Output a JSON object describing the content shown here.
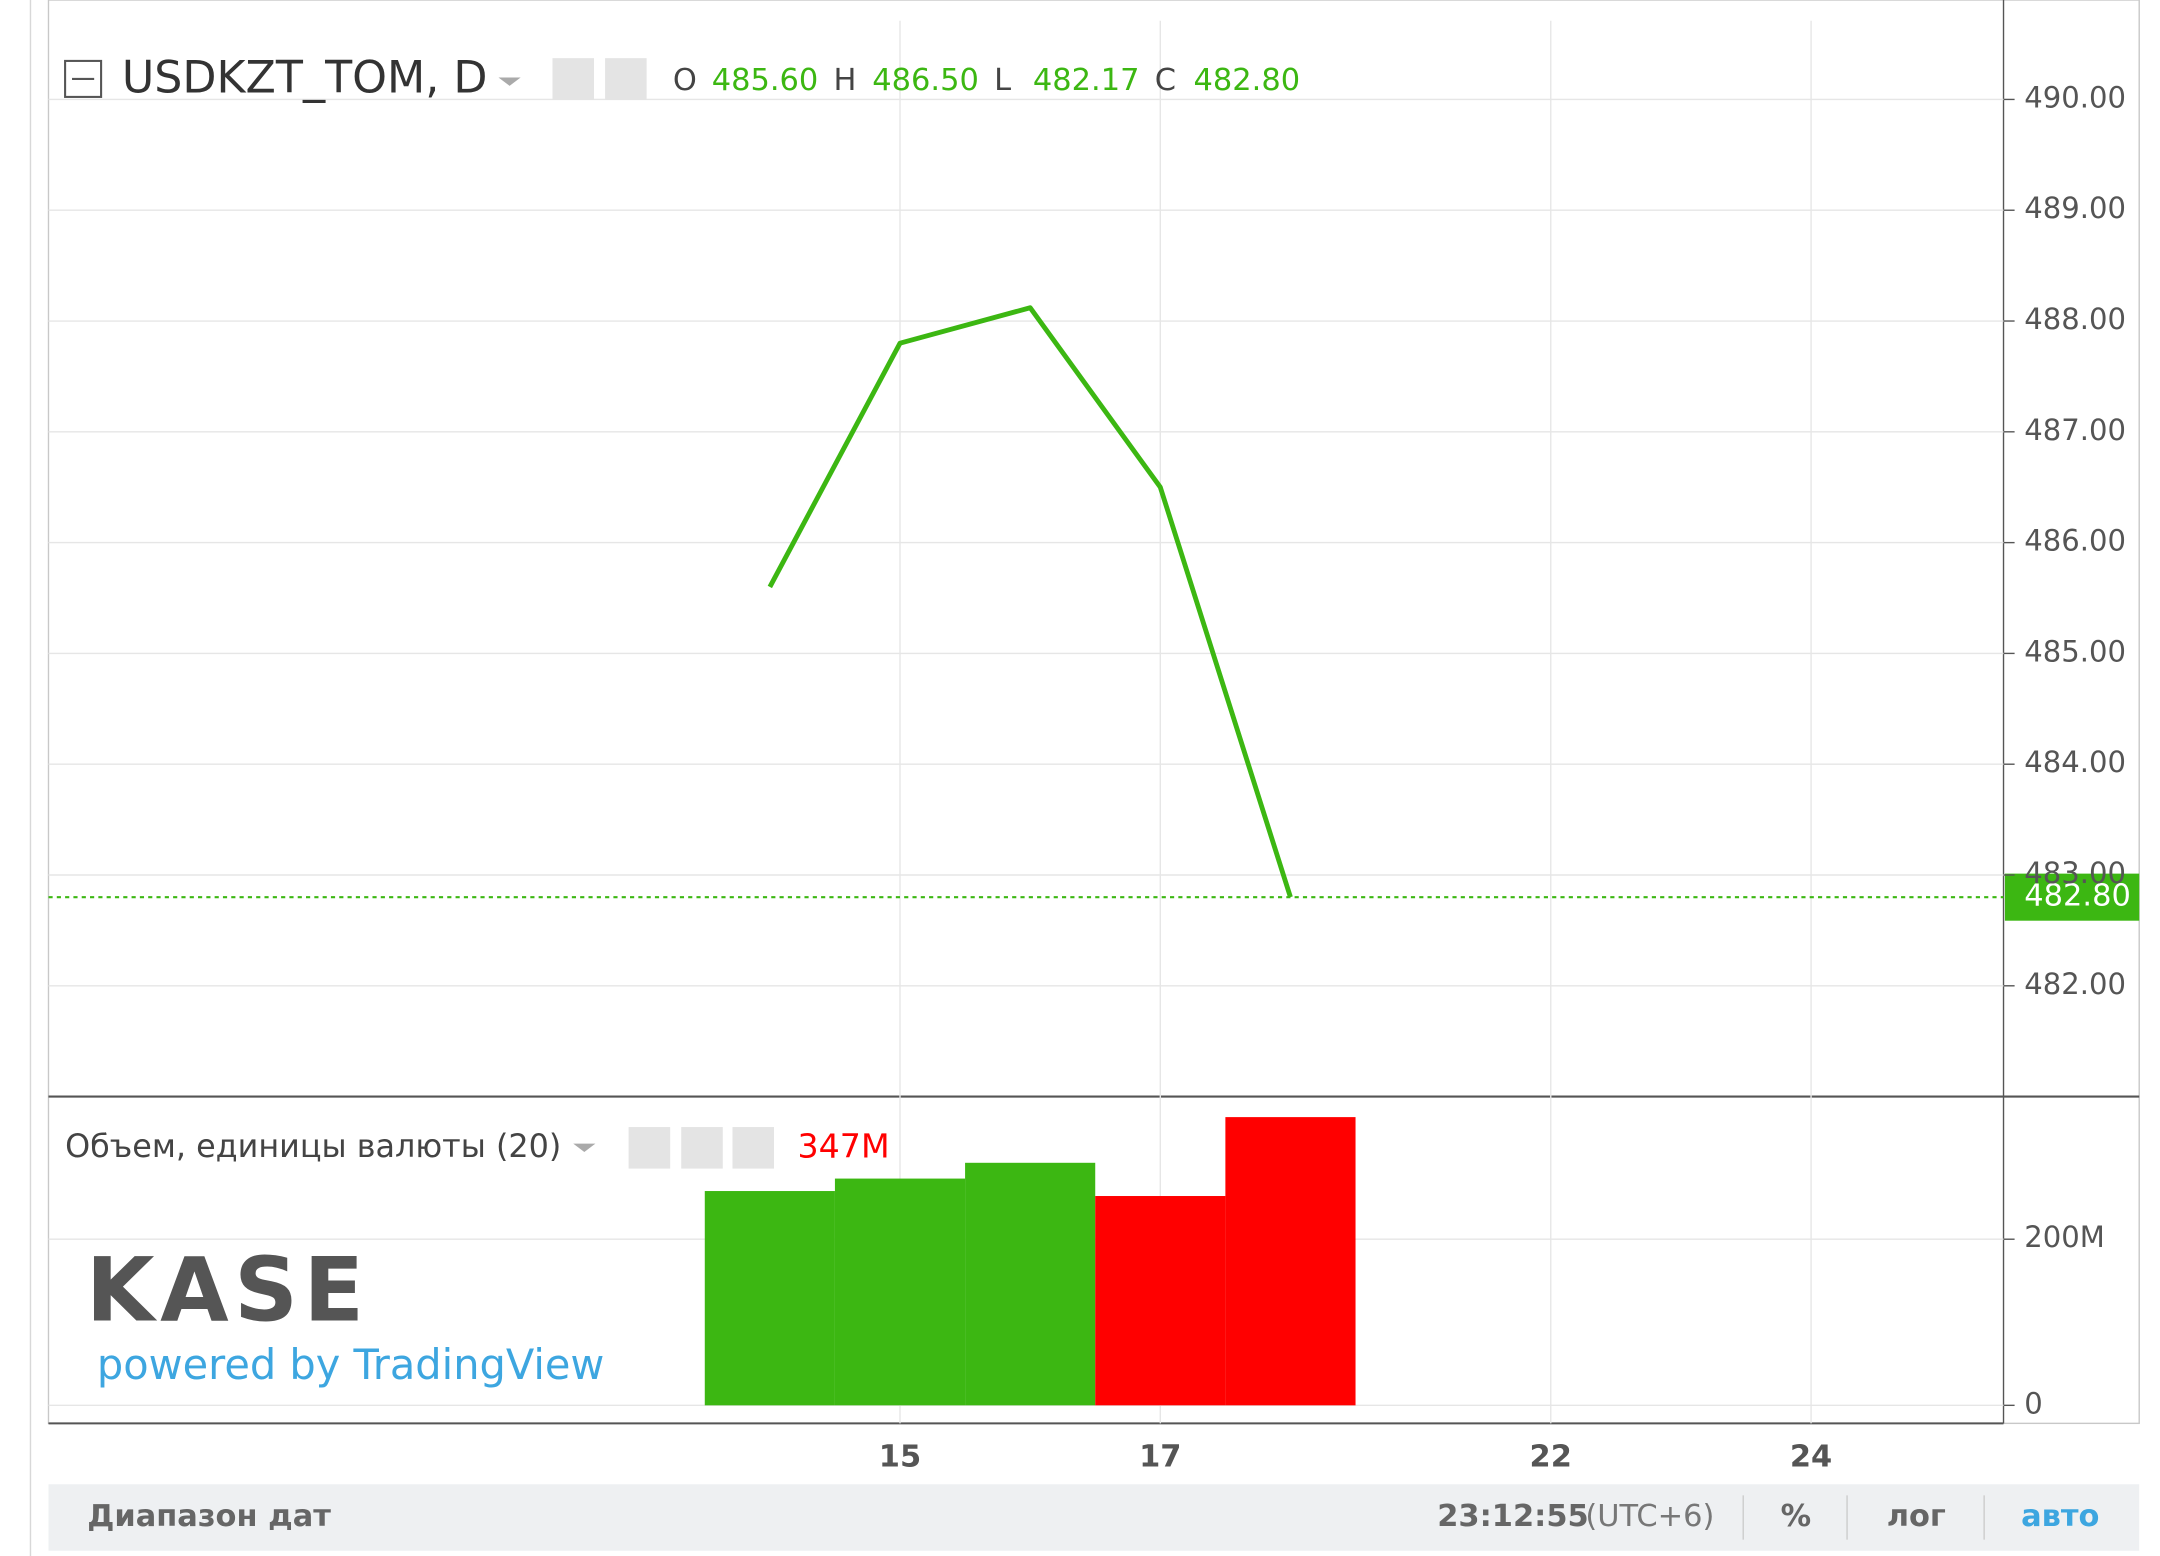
{
  "chart_data": [
    {
      "type": "line",
      "title": "USDKZT_TOM, D",
      "ohlc": [
        {
          "label": "O",
          "value": "485.60"
        },
        {
          "label": "H",
          "value": "486.50"
        },
        {
          "label": "L",
          "value": "482.17"
        },
        {
          "label": "C",
          "value": "482.80"
        }
      ],
      "categories": [
        null,
        "15",
        null,
        "17",
        null,
        null,
        "22",
        null,
        "24"
      ],
      "values": [
        485.6,
        487.8,
        488.12,
        486.5,
        482.8,
        null,
        null,
        null,
        null
      ],
      "color": "#3cb712",
      "ylim": [
        481,
        490.71
      ],
      "yticks": [
        {
          "value": 482,
          "label": "482.00"
        },
        {
          "value": 483,
          "label": "483.00"
        },
        {
          "value": 484,
          "label": "484.00"
        },
        {
          "value": 485,
          "label": "485.00"
        },
        {
          "value": 486,
          "label": "486.00"
        },
        {
          "value": 487,
          "label": "487.00"
        },
        {
          "value": 488,
          "label": "488.00"
        },
        {
          "value": 489,
          "label": "489.00"
        },
        {
          "value": 490,
          "label": "490.00"
        }
      ],
      "grid": true,
      "last_value": {
        "value": 482.8,
        "label": "482.80"
      }
    },
    {
      "type": "bar",
      "title": "Объем, единицы валюты (20)",
      "values": [
        258000000,
        273000000,
        292000000,
        252000000,
        347000000,
        null,
        null,
        null,
        null
      ],
      "colors": [
        "#3cb712",
        "#3cb712",
        "#3cb712",
        "#ff0000",
        "#ff0000",
        null,
        null,
        null,
        null
      ],
      "ylim": [
        -21700000,
        371700000
      ],
      "yticks": [
        0,
        {
          "value": 200000000,
          "label": "200M"
        }
      ],
      "grid": true,
      "last_value_label": "347M"
    }
  ],
  "watermark": {
    "logo": "KASE",
    "tagline": "powered by TradingView"
  },
  "toolbar": {
    "date_range": "Диапазон дат",
    "time": "23:12:55",
    "timezone": "(UTC+6)",
    "percent": "%",
    "log": "лог",
    "auto": "авто"
  }
}
